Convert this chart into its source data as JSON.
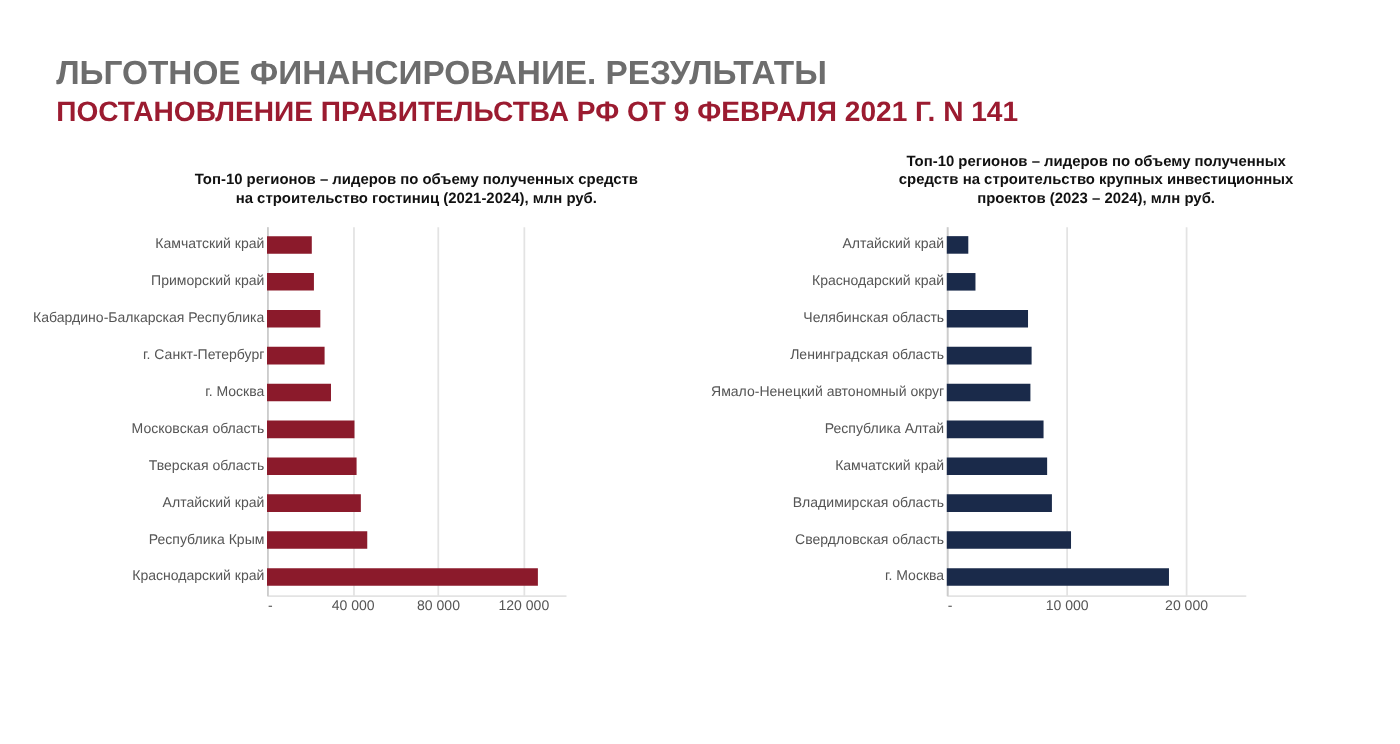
{
  "chart_data": [
    {
      "type": "bar",
      "orientation": "horizontal",
      "title": "Топ-10 регионов – лидеров по объему полученных средств на строительство гостиниц (2021-2024), млн руб.",
      "annotations": [
        "ЛЬГОТНОЕ ФИНАНСИРОВАНИЕ. РЕЗУЛЬТАТЫ",
        "ПОСТАНОВЛЕНИЕ ПРАВИТЕЛЬСТВА РФ ОТ 9 ФЕВРАЛЯ 2021 Г. N 141"
      ],
      "categories": [
        "Камчатский край",
        "Приморский край",
        "Кабардино-Балкарская Республика",
        "г. Санкт-Петербург",
        "г. Москва",
        "Московская область",
        "Тверская область",
        "Алтайский край",
        "Республика Крым",
        "Краснодарский край"
      ],
      "values": [
        21000,
        22000,
        25000,
        27000,
        30000,
        41000,
        42000,
        44000,
        47000,
        127000
      ],
      "color": "#8b1a2b",
      "xlim": [
        0,
        140000
      ],
      "xticks": [
        {
          "value": 0,
          "label": "-"
        },
        {
          "value": 40000,
          "label": "40 000"
        },
        {
          "value": 80000,
          "label": "80 000"
        },
        {
          "value": 120000,
          "label": "120 000"
        }
      ],
      "grid": "x"
    },
    {
      "type": "bar",
      "orientation": "horizontal",
      "title": "Топ-10 регионов – лидеров по объему полученных средств на строительство крупных инвестиционных проектов (2023 – 2024), млн руб.",
      "categories": [
        "Алтайский край",
        "Краснодарский край",
        "Челябинская область",
        "Ленинградская область",
        "Ямало-Ненецкий автономный округ",
        "Республика Алтай",
        "Камчатский край",
        "Владимирская область",
        "Свердловская область",
        "г. Москва"
      ],
      "values": [
        1800,
        2400,
        6800,
        7100,
        7000,
        8100,
        8400,
        8800,
        10400,
        18600
      ],
      "color": "#1a2a4a",
      "xlim": [
        0,
        25000
      ],
      "xticks": [
        {
          "value": 0,
          "label": "-"
        },
        {
          "value": 10000,
          "label": "10 000"
        },
        {
          "value": 20000,
          "label": "20 000"
        }
      ],
      "grid": "x"
    }
  ]
}
